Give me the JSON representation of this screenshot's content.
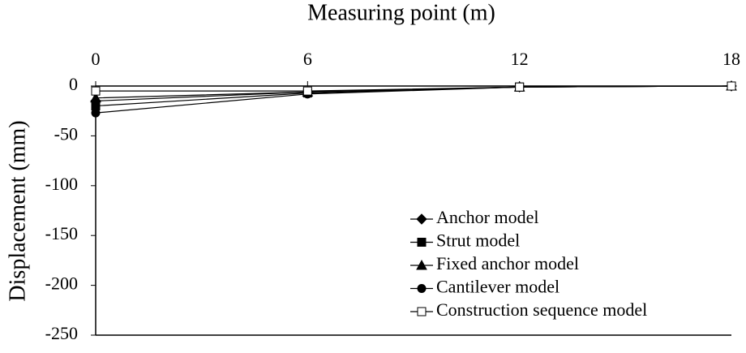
{
  "chart_data": {
    "type": "line",
    "x_label": "Measuring point (m)",
    "y_label": "Displacement (mm)",
    "x": [
      0,
      6,
      12,
      18
    ],
    "xlim": [
      0,
      18
    ],
    "xticks": [
      0,
      6,
      12,
      18
    ],
    "ylim": [
      -250,
      0
    ],
    "yticks": [
      -250,
      -200,
      -150,
      -100,
      -50,
      0
    ],
    "legend": "lower-right",
    "series": [
      {
        "name": "Anchor model",
        "color": "#000000",
        "marker": "diamond",
        "values": [
          -15,
          -6,
          -1,
          0
        ]
      },
      {
        "name": "Strut model",
        "color": "#000000",
        "marker": "square",
        "values": [
          -20,
          -7,
          -1,
          0
        ]
      },
      {
        "name": "Fixed anchor model",
        "color": "#000000",
        "marker": "triangle",
        "values": [
          -12,
          -6,
          -1,
          0
        ]
      },
      {
        "name": "Cantilever model",
        "color": "#000000",
        "marker": "circle",
        "values": [
          -27,
          -8,
          -1,
          0
        ]
      },
      {
        "name": "Construction sequence model",
        "color": "#000000",
        "marker": "open-square",
        "values": [
          -5,
          -5,
          -1,
          0
        ]
      }
    ]
  }
}
